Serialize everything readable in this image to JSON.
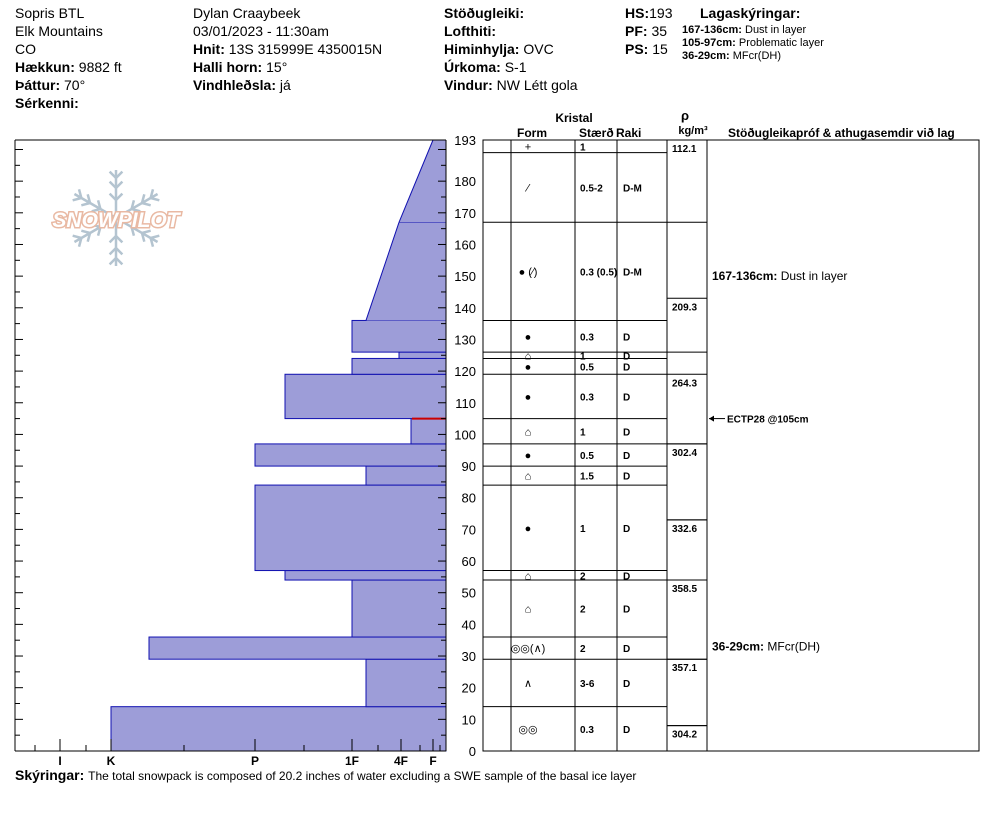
{
  "header": {
    "location": "Sopris BTL",
    "range": "Elk Mountains",
    "state": "CO",
    "elevation_label": "Hækkun:",
    "elevation_value": "9882 ft",
    "aspect_label": "Þáttur:",
    "aspect_value": "70°",
    "features_label": "Sérkenni:",
    "observer": "Dylan Craaybeek",
    "datetime": "03/01/2023 - 11:30am",
    "coords_label": "Hnit:",
    "coords_value": "13S 315999E 4350015N",
    "slope_label": "Halli horn:",
    "slope_value": "15°",
    "wind_loading_label": "Vindhleðsla:",
    "wind_loading_value": "já",
    "stability_label": "Stöðugleiki:",
    "air_temp_label": "Lofthiti:",
    "sky_label": "Himinhylja:",
    "sky_value": "OVC",
    "precip_label": "Úrkoma:",
    "precip_value": "S-1",
    "wind_label": "Vindur:",
    "wind_value": "NW Létt gola",
    "hs_label": "HS:",
    "hs_value": "193",
    "pf_label": "PF:",
    "pf_value": "35",
    "ps_label": "PS:",
    "ps_value": "15",
    "legend_title": "Lagaskýringar:",
    "legend": [
      {
        "range": "167-136cm:",
        "text": "Dust in layer"
      },
      {
        "range": "105-97cm:",
        "text": "Problematic layer"
      },
      {
        "range": "36-29cm:",
        "text": "MFcr(DH)"
      }
    ]
  },
  "table_headers": {
    "crystal": "Kristal",
    "form": "Form",
    "size": "Stærð",
    "moisture": "Raki",
    "density_symbol": "ρ",
    "density_unit": "kg/m³",
    "comments": "Stöðugleikapróf & athugasemdir við lag"
  },
  "footer": {
    "label": "Skýringar:",
    "text": "The total snowpack is composed of 20.2 inches of water excluding a SWE sample of the basal ice layer"
  },
  "logo_text": "SNOWPILOT",
  "colors": {
    "bar_fill": "#9d9dd8",
    "bar_stroke": "#1010b0",
    "problem_line": "#cc0000"
  },
  "chart_data": {
    "type": "bar",
    "orientation": "horizontal",
    "y_axis": {
      "ylim": [
        0,
        193
      ],
      "ticks": [
        0,
        10,
        20,
        30,
        40,
        50,
        60,
        70,
        80,
        90,
        100,
        110,
        120,
        130,
        140,
        150,
        160,
        170,
        180,
        193
      ]
    },
    "x_axis": {
      "labels": [
        "I",
        "K",
        "P",
        "1F",
        "4F",
        "F"
      ]
    },
    "hardness_profile": [
      {
        "bottom": 0,
        "top": 14,
        "hardness": "K"
      },
      {
        "bottom": 14,
        "top": 29,
        "hardness": "1F+"
      },
      {
        "bottom": 29,
        "top": 36,
        "hardness": "K+"
      },
      {
        "bottom": 36,
        "top": 54,
        "hardness": "1F"
      },
      {
        "bottom": 54,
        "top": 57,
        "hardness": "P+"
      },
      {
        "bottom": 57,
        "top": 84,
        "hardness": "P-"
      },
      {
        "bottom": 84,
        "top": 90,
        "hardness": "1F+"
      },
      {
        "bottom": 90,
        "top": 97,
        "hardness": "P-"
      },
      {
        "bottom": 97,
        "top": 105,
        "hardness": "F+"
      },
      {
        "bottom": 105,
        "top": 119,
        "hardness": "P+"
      },
      {
        "bottom": 119,
        "top": 124,
        "hardness": "1F"
      },
      {
        "bottom": 124,
        "top": 126,
        "hardness": "4F-"
      },
      {
        "bottom": 126,
        "top": 136,
        "hardness": "1F"
      },
      {
        "bottom": 136,
        "top": 167,
        "hardness_bottom": "1F+",
        "hardness_top": "4F-"
      },
      {
        "bottom": 167,
        "top": 193,
        "hardness_bottom": "4F-",
        "hardness_top": "F"
      }
    ],
    "problem_layer_marker": 105,
    "layers": [
      {
        "bottom": 189,
        "top": 193,
        "form": "+",
        "size": "1",
        "moisture": ""
      },
      {
        "bottom": 167,
        "top": 189,
        "form": "⁄",
        "size": "0.5-2",
        "moisture": "D-M"
      },
      {
        "bottom": 136,
        "top": 167,
        "form": "● (⁄)",
        "size": "0.3 (0.5)",
        "moisture": "D-M"
      },
      {
        "bottom": 126,
        "top": 136,
        "form": "●",
        "size": "0.3",
        "moisture": "D"
      },
      {
        "bottom": 124,
        "top": 126,
        "form": "⌂",
        "size": "1",
        "moisture": "D"
      },
      {
        "bottom": 119,
        "top": 124,
        "form": "●",
        "size": "0.5",
        "moisture": "D"
      },
      {
        "bottom": 105,
        "top": 119,
        "form": "●",
        "size": "0.3",
        "moisture": "D"
      },
      {
        "bottom": 97,
        "top": 105,
        "form": "⌂",
        "size": "1",
        "moisture": "D"
      },
      {
        "bottom": 90,
        "top": 97,
        "form": "●",
        "size": "0.5",
        "moisture": "D"
      },
      {
        "bottom": 84,
        "top": 90,
        "form": "⌂",
        "size": "1.5",
        "moisture": "D"
      },
      {
        "bottom": 57,
        "top": 84,
        "form": "●",
        "size": "1",
        "moisture": "D"
      },
      {
        "bottom": 54,
        "top": 57,
        "form": "⌂",
        "size": "2",
        "moisture": "D"
      },
      {
        "bottom": 36,
        "top": 54,
        "form": "⌂",
        "size": "2",
        "moisture": "D"
      },
      {
        "bottom": 29,
        "top": 36,
        "form": "◎◎(∧)",
        "size": "2",
        "moisture": "D"
      },
      {
        "bottom": 14,
        "top": 29,
        "form": "∧",
        "size": "3-6",
        "moisture": "D"
      },
      {
        "bottom": 0,
        "top": 14,
        "form": "◎◎",
        "size": "0.3",
        "moisture": "D"
      }
    ],
    "densities": [
      {
        "bottom": 167,
        "top": 193,
        "value": "112.1"
      },
      {
        "bottom": 126,
        "top": 143,
        "value": "209.3"
      },
      {
        "bottom": 97,
        "top": 119,
        "value": "264.3"
      },
      {
        "bottom": 73,
        "top": 97,
        "value": "302.4"
      },
      {
        "bottom": 54,
        "top": 73,
        "value": "332.6"
      },
      {
        "bottom": 29,
        "top": 54,
        "value": "358.5"
      },
      {
        "bottom": 8,
        "top": 29,
        "value": "357.1"
      },
      {
        "bottom": 0,
        "top": 8,
        "value": "304.2"
      }
    ],
    "comments": [
      {
        "height": 150,
        "range": "167-136cm:",
        "text": "Dust in layer"
      },
      {
        "height": 33,
        "range": "36-29cm:",
        "text": "MFcr(DH)"
      }
    ],
    "stability_tests": [
      {
        "height": 105,
        "text": "ECTP28 @105cm"
      }
    ]
  }
}
